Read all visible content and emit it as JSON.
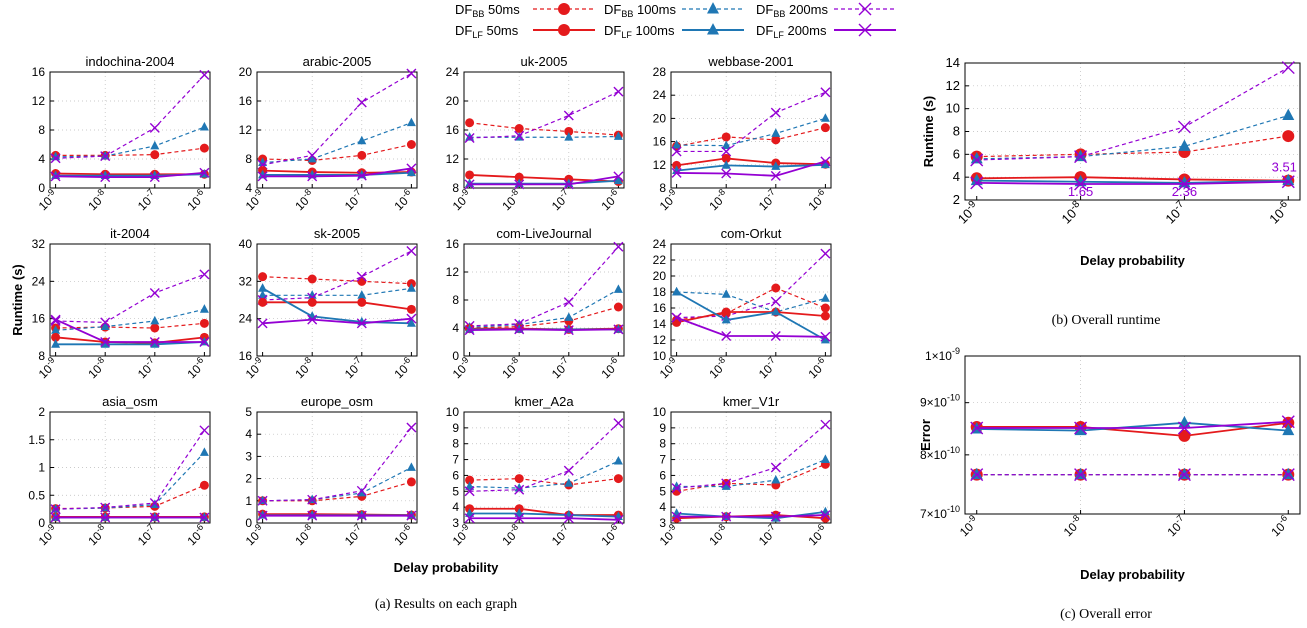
{
  "x_values": [
    1e-09,
    1e-08,
    1e-07,
    1e-06
  ],
  "x_ticks": [
    {
      "base": "10",
      "exp": "-9"
    },
    {
      "base": "10",
      "exp": "-8"
    },
    {
      "base": "10",
      "exp": "-7"
    },
    {
      "base": "10",
      "exp": "-6"
    }
  ],
  "legend": [
    {
      "main": "DF",
      "sub": "BB",
      "rest": "  50ms",
      "color": "#e41a1c",
      "marker": "circle",
      "dashed": true
    },
    {
      "main": "DF",
      "sub": "BB",
      "rest": " 100ms",
      "color": "#1f77b4",
      "marker": "triangle",
      "dashed": true
    },
    {
      "main": "DF",
      "sub": "BB",
      "rest": " 200ms",
      "color": "#9400d3",
      "marker": "x",
      "dashed": true
    },
    {
      "main": "DF",
      "sub": "LF",
      "rest": "  50ms",
      "color": "#e41a1c",
      "marker": "circle",
      "dashed": false
    },
    {
      "main": "DF",
      "sub": "LF",
      "rest": " 100ms",
      "color": "#1f77b4",
      "marker": "triangle",
      "dashed": false
    },
    {
      "main": "DF",
      "sub": "LF",
      "rest": " 200ms",
      "color": "#9400d3",
      "marker": "x",
      "dashed": false
    }
  ],
  "captions": {
    "a": "(a)  Results on each graph",
    "b": "(b)  Overall runtime",
    "c": "(c)  Overall error"
  },
  "panel_a_xlabel": "Delay probability",
  "panel_a_ylabel": "Runtime (s)",
  "chart_data": [
    {
      "type": "line",
      "title": "indochina-2004",
      "ylim": [
        0,
        16
      ],
      "yticks": [
        "0",
        "4",
        "8",
        "12",
        "16"
      ],
      "series": [
        {
          "values": [
            4.5,
            4.5,
            4.6,
            5.5
          ]
        },
        {
          "values": [
            4.3,
            4.4,
            5.8,
            8.4
          ]
        },
        {
          "values": [
            4.1,
            4.4,
            8.3,
            15.6
          ]
        },
        {
          "values": [
            2.0,
            1.9,
            1.9,
            1.9
          ]
        },
        {
          "values": [
            1.7,
            1.7,
            1.7,
            1.9
          ]
        },
        {
          "values": [
            1.6,
            1.5,
            1.5,
            2.1
          ]
        }
      ]
    },
    {
      "type": "line",
      "title": "arabic-2005",
      "ylim": [
        4,
        20
      ],
      "yticks": [
        "4",
        "8",
        "12",
        "16",
        "20"
      ],
      "series": [
        {
          "values": [
            8.0,
            7.8,
            8.5,
            10.0
          ]
        },
        {
          "values": [
            7.5,
            8.0,
            10.5,
            13.0
          ]
        },
        {
          "values": [
            7.2,
            8.5,
            15.8,
            19.8
          ]
        },
        {
          "values": [
            6.4,
            6.2,
            6.1,
            6.2
          ]
        },
        {
          "values": [
            5.8,
            5.8,
            5.8,
            6.1
          ]
        },
        {
          "values": [
            5.6,
            5.6,
            5.7,
            6.7
          ]
        }
      ]
    },
    {
      "type": "line",
      "title": "uk-2005",
      "ylim": [
        8,
        24
      ],
      "yticks": [
        "8",
        "12",
        "16",
        "20",
        "24"
      ],
      "series": [
        {
          "values": [
            17.0,
            16.2,
            15.8,
            15.3
          ]
        },
        {
          "values": [
            15.0,
            15.0,
            15.0,
            15.1
          ]
        },
        {
          "values": [
            14.9,
            15.2,
            18.0,
            21.3
          ]
        },
        {
          "values": [
            9.8,
            9.5,
            9.2,
            8.9
          ]
        },
        {
          "values": [
            8.6,
            8.6,
            8.6,
            9.0
          ]
        },
        {
          "values": [
            8.5,
            8.5,
            8.5,
            9.6
          ]
        }
      ]
    },
    {
      "type": "line",
      "title": "webbase-2001",
      "ylim": [
        8,
        28
      ],
      "yticks": [
        "8",
        "12",
        "16",
        "20",
        "24",
        "28"
      ],
      "series": [
        {
          "values": [
            15.2,
            16.8,
            16.3,
            18.4
          ]
        },
        {
          "values": [
            15.4,
            15.3,
            17.4,
            20.0
          ]
        },
        {
          "values": [
            14.3,
            14.3,
            21.0,
            24.5
          ]
        },
        {
          "values": [
            11.9,
            13.1,
            12.3,
            12.1
          ]
        },
        {
          "values": [
            11.0,
            11.9,
            11.7,
            12.0
          ]
        },
        {
          "values": [
            10.6,
            10.5,
            10.1,
            12.6
          ]
        }
      ]
    },
    {
      "type": "line",
      "title": "it-2004",
      "ylim": [
        8,
        32
      ],
      "yticks": [
        "8",
        "16",
        "24",
        "32"
      ],
      "series": [
        {
          "values": [
            14.0,
            14.2,
            14.0,
            15.0
          ]
        },
        {
          "values": [
            13.5,
            14.3,
            15.5,
            18.0
          ]
        },
        {
          "values": [
            15.5,
            15.2,
            21.5,
            25.5
          ]
        },
        {
          "values": [
            12.0,
            11.0,
            10.8,
            12.0
          ]
        },
        {
          "values": [
            10.5,
            10.5,
            10.5,
            11.0
          ]
        },
        {
          "values": [
            15.8,
            11.0,
            11.0,
            11.0
          ]
        }
      ]
    },
    {
      "type": "line",
      "title": "sk-2005",
      "ylim": [
        16,
        40
      ],
      "yticks": [
        "16",
        "24",
        "32",
        "40"
      ],
      "series": [
        {
          "values": [
            33.0,
            32.5,
            32.0,
            31.5
          ]
        },
        {
          "values": [
            29.0,
            29.0,
            29.0,
            30.5
          ]
        },
        {
          "values": [
            28.0,
            28.5,
            33.0,
            38.5
          ]
        },
        {
          "values": [
            27.5,
            27.5,
            27.5,
            26.0
          ]
        },
        {
          "values": [
            30.5,
            24.5,
            23.3,
            23.0
          ]
        },
        {
          "values": [
            23.0,
            23.8,
            23.0,
            24.0
          ]
        }
      ]
    },
    {
      "type": "line",
      "title": "com-LiveJournal",
      "ylim": [
        0,
        16
      ],
      "yticks": [
        "0",
        "4",
        "8",
        "12",
        "16"
      ],
      "series": [
        {
          "values": [
            4.0,
            4.2,
            5.0,
            7.0
          ]
        },
        {
          "values": [
            4.1,
            4.5,
            5.5,
            9.5
          ]
        },
        {
          "values": [
            4.3,
            4.6,
            7.7,
            15.6
          ]
        },
        {
          "values": [
            3.9,
            3.9,
            3.8,
            3.9
          ]
        },
        {
          "values": [
            3.8,
            3.8,
            3.8,
            3.8
          ]
        },
        {
          "values": [
            3.7,
            3.8,
            3.7,
            3.8
          ]
        }
      ]
    },
    {
      "type": "line",
      "title": "com-Orkut",
      "ylim": [
        10,
        24
      ],
      "yticks": [
        "10",
        "12",
        "14",
        "16",
        "18",
        "20",
        "22",
        "24"
      ],
      "series": [
        {
          "values": [
            14.5,
            15.3,
            18.5,
            16.0
          ]
        },
        {
          "values": [
            18.0,
            17.7,
            15.5,
            17.2
          ]
        },
        {
          "values": [
            14.8,
            15.0,
            16.8,
            22.8
          ]
        },
        {
          "values": [
            14.2,
            15.5,
            15.5,
            15.0
          ]
        },
        {
          "values": [
            18.0,
            14.5,
            15.5,
            12.0
          ]
        },
        {
          "values": [
            14.8,
            12.5,
            12.5,
            12.4
          ]
        }
      ]
    },
    {
      "type": "line",
      "title": "asia_osm",
      "ylim": [
        0,
        2
      ],
      "yticks": [
        "0",
        "0.5",
        "1",
        "1.5",
        "2"
      ],
      "series": [
        {
          "values": [
            0.26,
            0.27,
            0.3,
            0.68
          ]
        },
        {
          "values": [
            0.25,
            0.27,
            0.33,
            1.27
          ]
        },
        {
          "values": [
            0.25,
            0.28,
            0.36,
            1.67
          ]
        },
        {
          "values": [
            0.11,
            0.11,
            0.11,
            0.11
          ]
        },
        {
          "values": [
            0.1,
            0.1,
            0.1,
            0.1
          ]
        },
        {
          "values": [
            0.1,
            0.1,
            0.1,
            0.1
          ]
        }
      ]
    },
    {
      "type": "line",
      "title": "europe_osm",
      "ylim": [
        0,
        5
      ],
      "yticks": [
        "0",
        "1",
        "2",
        "3",
        "4",
        "5"
      ],
      "series": [
        {
          "values": [
            1.0,
            1.0,
            1.2,
            1.85
          ]
        },
        {
          "values": [
            1.0,
            1.05,
            1.35,
            2.5
          ]
        },
        {
          "values": [
            1.0,
            1.05,
            1.45,
            4.3
          ]
        },
        {
          "values": [
            0.4,
            0.4,
            0.38,
            0.36
          ]
        },
        {
          "values": [
            0.35,
            0.35,
            0.35,
            0.35
          ]
        },
        {
          "values": [
            0.33,
            0.33,
            0.33,
            0.33
          ]
        }
      ]
    },
    {
      "type": "line",
      "title": "kmer_A2a",
      "ylim": [
        3,
        10
      ],
      "yticks": [
        "3",
        "4",
        "5",
        "6",
        "7",
        "8",
        "9",
        "10"
      ],
      "series": [
        {
          "values": [
            5.7,
            5.8,
            5.4,
            5.8
          ]
        },
        {
          "values": [
            5.3,
            5.2,
            5.5,
            6.9
          ]
        },
        {
          "values": [
            5.0,
            5.1,
            6.3,
            9.3
          ]
        },
        {
          "values": [
            3.9,
            3.9,
            3.5,
            3.5
          ]
        },
        {
          "values": [
            3.6,
            3.6,
            3.5,
            3.4
          ]
        },
        {
          "values": [
            3.3,
            3.3,
            3.3,
            3.2
          ]
        }
      ]
    },
    {
      "type": "line",
      "title": "kmer_V1r",
      "ylim": [
        3,
        10
      ],
      "yticks": [
        "3",
        "4",
        "5",
        "6",
        "7",
        "8",
        "9",
        "10"
      ],
      "series": [
        {
          "values": [
            5.0,
            5.5,
            5.4,
            6.7
          ]
        },
        {
          "values": [
            5.3,
            5.3,
            5.7,
            7.0
          ]
        },
        {
          "values": [
            5.2,
            5.5,
            6.5,
            9.2
          ]
        },
        {
          "values": [
            3.3,
            3.4,
            3.5,
            3.3
          ]
        },
        {
          "values": [
            3.6,
            3.4,
            3.3,
            3.7
          ]
        },
        {
          "values": [
            3.4,
            3.4,
            3.4,
            3.5
          ]
        }
      ]
    },
    {
      "type": "line",
      "title": "",
      "xlabel": "Delay probability",
      "ylabel": "Runtime (s)",
      "ylim": [
        2,
        14
      ],
      "yticks": [
        "2",
        "4",
        "6",
        "8",
        "10",
        "12",
        "14"
      ],
      "annotations": [
        {
          "text": "1.65",
          "x": 1e-08
        },
        {
          "text": "2.36",
          "x": 1e-07
        },
        {
          "text": "3.51",
          "x": 1e-06
        }
      ],
      "series": [
        {
          "values": [
            5.8,
            6.0,
            6.2,
            7.6
          ]
        },
        {
          "values": [
            5.6,
            5.8,
            6.7,
            9.4
          ]
        },
        {
          "values": [
            5.5,
            5.8,
            8.4,
            13.6
          ]
        },
        {
          "values": [
            3.9,
            4.0,
            3.8,
            3.7
          ]
        },
        {
          "values": [
            3.7,
            3.6,
            3.5,
            3.7
          ]
        },
        {
          "values": [
            3.5,
            3.4,
            3.4,
            3.6
          ]
        }
      ]
    },
    {
      "type": "line",
      "title": "",
      "xlabel": "Delay probability",
      "ylabel": "Error",
      "ylim": [
        7e-10,
        1e-09
      ],
      "yticks": [
        {
          "mant": "7",
          "times": "×",
          "base": "10",
          "exp": "-10"
        },
        {
          "mant": "8",
          "times": "×",
          "base": "10",
          "exp": "-10"
        },
        {
          "mant": "9",
          "times": "×",
          "base": "10",
          "exp": "-10"
        },
        {
          "mant": "1",
          "times": "×",
          "base": "10",
          "exp": "-9"
        }
      ],
      "series": [
        {
          "values": [
            7.65e-10,
            7.65e-10,
            7.65e-10,
            7.65e-10
          ]
        },
        {
          "values": [
            7.65e-10,
            7.65e-10,
            7.65e-10,
            7.65e-10
          ]
        },
        {
          "values": [
            7.65e-10,
            7.65e-10,
            7.65e-10,
            7.65e-10
          ]
        },
        {
          "values": [
            8.52e-10,
            8.52e-10,
            8.35e-10,
            8.6e-10
          ]
        },
        {
          "values": [
            8.48e-10,
            8.45e-10,
            8.6e-10,
            8.45e-10
          ]
        },
        {
          "values": [
            8.5e-10,
            8.5e-10,
            8.5e-10,
            8.62e-10
          ]
        }
      ]
    }
  ]
}
